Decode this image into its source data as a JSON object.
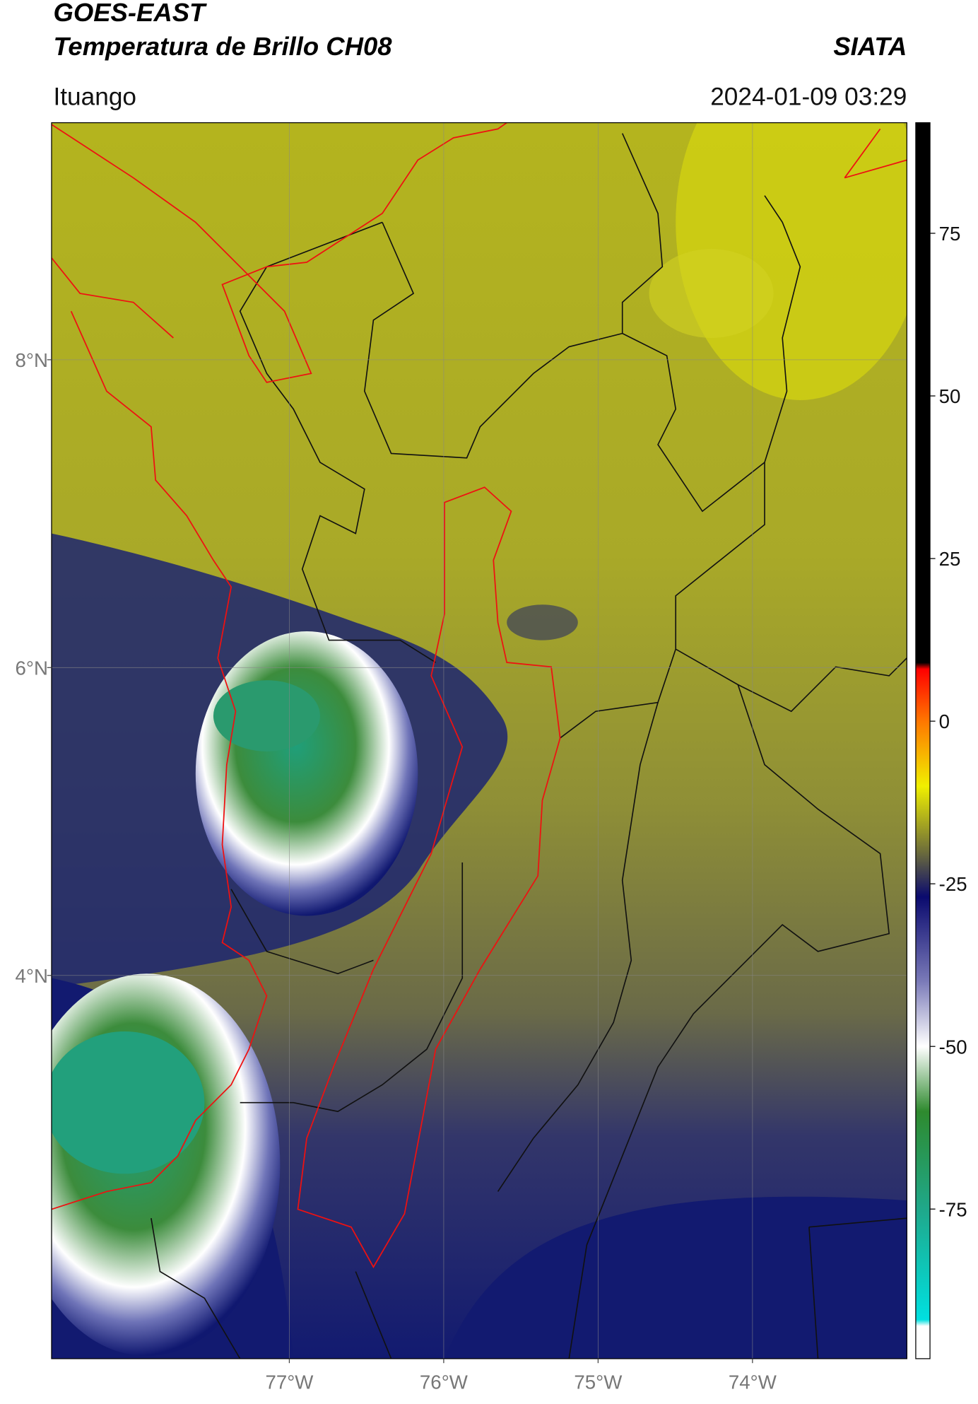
{
  "header": {
    "title": "GOES-EAST",
    "subtitle": "Temperatura de Brillo CH08",
    "source": "SIATA",
    "location": "Ituango",
    "datetime": "2024-01-09 03:29"
  },
  "map": {
    "xlim": [
      -78.54,
      -73.0
    ],
    "ylim": [
      1.51,
      9.54
    ],
    "xticks": [
      {
        "value": -77,
        "label": "77°W"
      },
      {
        "value": -76,
        "label": "76°W"
      },
      {
        "value": -75,
        "label": "75°W"
      },
      {
        "value": -74,
        "label": "74°W"
      }
    ],
    "yticks": [
      {
        "value": 8,
        "label": "8°N"
      },
      {
        "value": 6,
        "label": "6°N"
      },
      {
        "value": 4,
        "label": "4°N"
      }
    ],
    "grid": true
  },
  "colorbar": {
    "lim": [
      -98,
      92
    ],
    "ticks": [
      75,
      50,
      25,
      0,
      -25,
      -50,
      -75
    ],
    "stops": [
      {
        "value": 92,
        "color": "#000000"
      },
      {
        "value": 9,
        "color": "#000000"
      },
      {
        "value": 8,
        "color": "#ff0000"
      },
      {
        "value": 0,
        "color": "#ff7700"
      },
      {
        "value": -10,
        "color": "#f0f000"
      },
      {
        "value": -20,
        "color": "#6e6e3a"
      },
      {
        "value": -27,
        "color": "#0a0a6e"
      },
      {
        "value": -40,
        "color": "#7a7ab8"
      },
      {
        "value": -50,
        "color": "#ffffff"
      },
      {
        "value": -60,
        "color": "#2e8a2e"
      },
      {
        "value": -75,
        "color": "#1fa88a"
      },
      {
        "value": -92,
        "color": "#00e0e0"
      },
      {
        "value": -93,
        "color": "#ffffff"
      },
      {
        "value": -98,
        "color": "#ffffff"
      }
    ]
  }
}
